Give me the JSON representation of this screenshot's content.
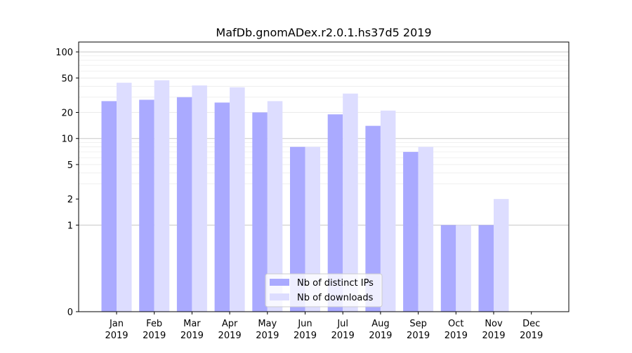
{
  "chart_data": {
    "type": "bar",
    "title": "MafDb.gnomADex.r2.0.1.hs37d5 2019",
    "xlabel": "",
    "ylabel": "",
    "y_scale": "symlog",
    "ylim": [
      0,
      130
    ],
    "y_ticks": [
      {
        "value": 0,
        "label": "0"
      },
      {
        "value": 1,
        "label": "1"
      },
      {
        "value": 2,
        "label": "2"
      },
      {
        "value": 5,
        "label": "5"
      },
      {
        "value": 10,
        "label": "10"
      },
      {
        "value": 20,
        "label": "20"
      },
      {
        "value": 50,
        "label": "50"
      },
      {
        "value": 100,
        "label": "100"
      }
    ],
    "categories": [
      {
        "month": "Jan",
        "year": "2019"
      },
      {
        "month": "Feb",
        "year": "2019"
      },
      {
        "month": "Mar",
        "year": "2019"
      },
      {
        "month": "Apr",
        "year": "2019"
      },
      {
        "month": "May",
        "year": "2019"
      },
      {
        "month": "Jun",
        "year": "2019"
      },
      {
        "month": "Jul",
        "year": "2019"
      },
      {
        "month": "Aug",
        "year": "2019"
      },
      {
        "month": "Sep",
        "year": "2019"
      },
      {
        "month": "Oct",
        "year": "2019"
      },
      {
        "month": "Nov",
        "year": "2019"
      },
      {
        "month": "Dec",
        "year": "2019"
      }
    ],
    "series": [
      {
        "name": "Nb of distinct IPs",
        "color": "#aaaaff",
        "values": [
          27,
          28,
          30,
          26,
          20,
          8,
          19,
          14,
          7,
          1,
          1,
          0
        ]
      },
      {
        "name": "Nb of downloads",
        "color": "#ddddff",
        "values": [
          44,
          47,
          41,
          39,
          27,
          8,
          33,
          21,
          8,
          1,
          2,
          0
        ]
      }
    ],
    "legend": {
      "position": "bottom-center"
    },
    "grid": true
  }
}
